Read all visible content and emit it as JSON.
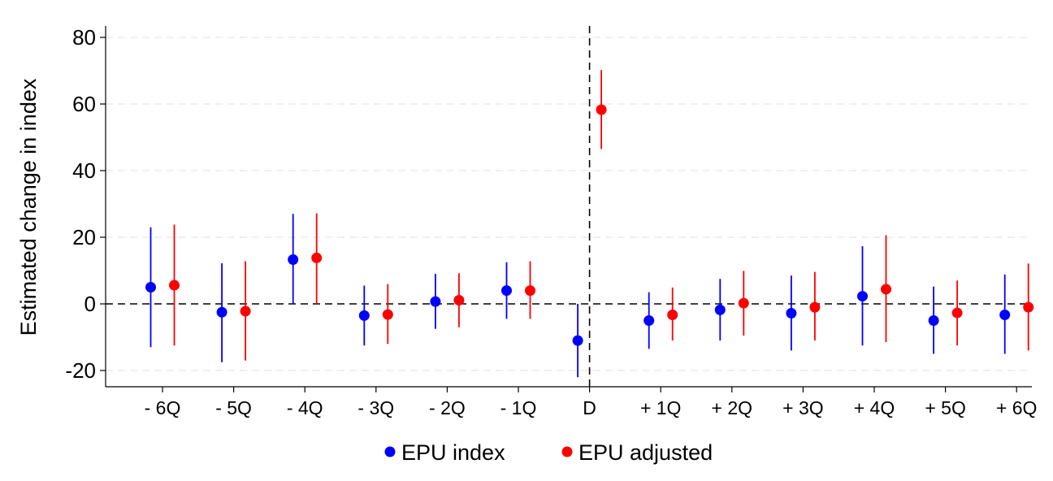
{
  "chart_data": {
    "type": "scatter",
    "title": "",
    "xlabel": "",
    "ylabel": "Estimated change in index",
    "ylim": [
      -25,
      83
    ],
    "yticks": [
      -20,
      0,
      20,
      40,
      60,
      80
    ],
    "grid": "horizontal dashed",
    "reference_lines": {
      "y": 0,
      "x": "D"
    },
    "legend_position": "bottom",
    "categories": [
      "- 6Q",
      "- 5Q",
      "- 4Q",
      "- 3Q",
      "- 2Q",
      "- 1Q",
      "D",
      "+ 1Q",
      "+ 2Q",
      "+ 3Q",
      "+ 4Q",
      "+ 5Q",
      "+ 6Q"
    ],
    "series": [
      {
        "name": "EPU index",
        "color": "#0000ff",
        "values": [
          5,
          -2.5,
          13.3,
          -3.5,
          0.7,
          4,
          -11,
          -5,
          -1.8,
          -2.8,
          2.3,
          -5,
          -3.3
        ],
        "ci_low": [
          -13,
          -17.5,
          0,
          -12.5,
          -7.5,
          -4.5,
          -22,
          -13.5,
          -11,
          -14,
          -12.5,
          -15,
          -15
        ],
        "ci_high": [
          23,
          12.2,
          27,
          5.5,
          9,
          12.5,
          0,
          3.5,
          7.5,
          8.5,
          17.3,
          5.2,
          8.8
        ]
      },
      {
        "name": "EPU adjusted",
        "color": "#ff0000",
        "values": [
          5.6,
          -2.2,
          13.8,
          -3.2,
          1.1,
          4,
          58.3,
          -3.3,
          0.2,
          -1,
          4.4,
          -2.7,
          -1
        ],
        "ci_low": [
          -12.5,
          -17,
          0,
          -12,
          -7,
          -4.5,
          46.5,
          -11,
          -9.5,
          -11,
          -11.5,
          -12.5,
          -14
        ],
        "ci_high": [
          23.8,
          12.8,
          27.2,
          5.9,
          9.2,
          12.8,
          70.2,
          4.9,
          9.9,
          9.6,
          20.6,
          7,
          12.1
        ]
      }
    ]
  }
}
